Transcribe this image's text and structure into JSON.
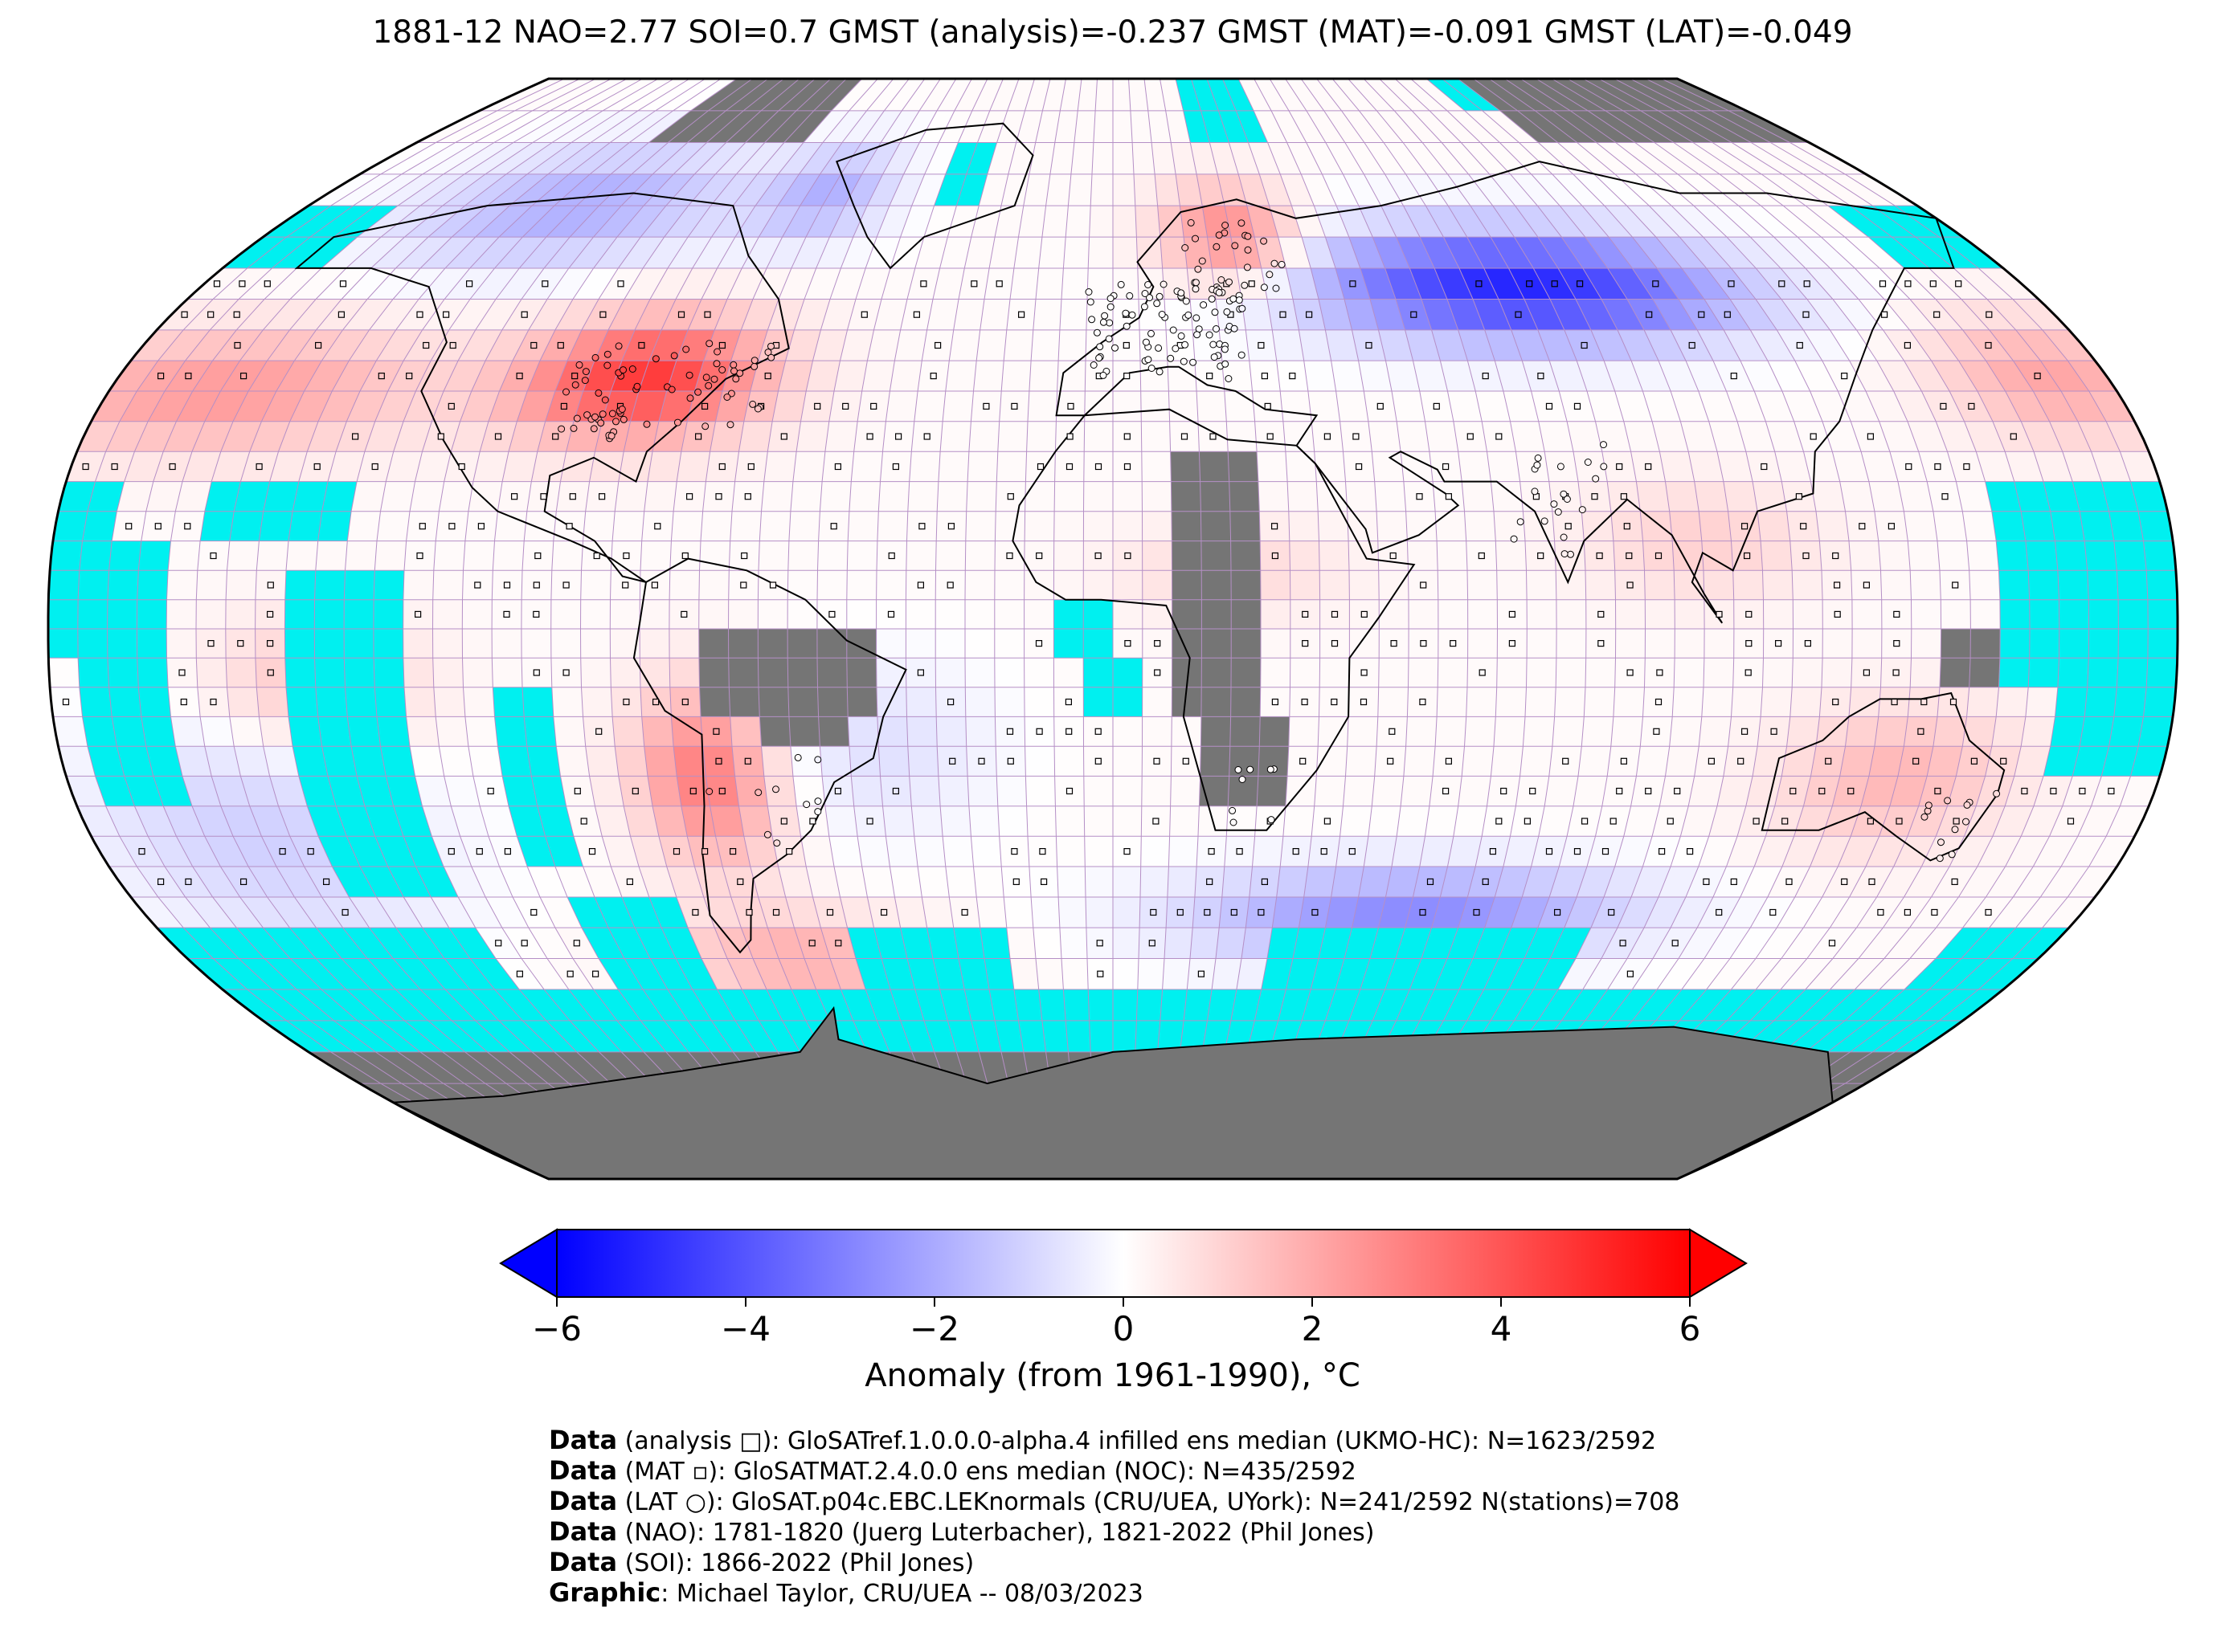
{
  "title": "1881-12 NAO=2.77 SOI=0.7 GMST (analysis)=-0.237 GMST (MAT)=-0.091 GMST (LAT)=-0.049",
  "colors": {
    "no_data": "#00f0f0",
    "land_gap": "#757575",
    "gridline": "#b58fc6",
    "cold": "#0000ff",
    "warm": "#ff0000"
  },
  "colorbar": {
    "label": "Anomaly (from 1961-1990), °C",
    "min": -6,
    "max": 6,
    "ticks": [
      "−6",
      "−4",
      "−2",
      "0",
      "2",
      "4",
      "6"
    ],
    "tick_values": [
      -6,
      -4,
      -2,
      0,
      2,
      4,
      6
    ],
    "extend": "both"
  },
  "credits": [
    {
      "key": "Data",
      "text": " (analysis □): GloSATref.1.0.0.0-alpha.4 infilled ens median (UKMO-HC): N=1623/2592"
    },
    {
      "key": "Data",
      "text": " (MAT ▫): GloSATMAT.2.4.0.0 ens median (NOC): N=435/2592"
    },
    {
      "key": "Data",
      "text": " (LAT ○): GloSAT.p04c.EBC.LEKnormals (CRU/UEA, UYork): N=241/2592 N(stations)=708"
    },
    {
      "key": "Data",
      "text": " (NAO): 1781-1820 (Juerg Luterbacher), 1821-2022 (Phil Jones)"
    },
    {
      "key": "Data",
      "text": " (SOI): 1866-2022 (Phil Jones)"
    },
    {
      "key": "Graphic",
      "text": ": Michael Taylor, CRU/UEA -- 08/03/2023"
    }
  ],
  "chart_data": {
    "type": "heatmap",
    "projection": "Robinson",
    "grid_resolution_deg": 5,
    "units": "°C",
    "anomaly_regions": [
      {
        "region": "North America (east)",
        "anomaly": 4.5
      },
      {
        "region": "North Pacific",
        "anomaly": 2.5
      },
      {
        "region": "Scandinavia",
        "anomaly": 3.0
      },
      {
        "region": "Siberia / Central Asia",
        "anomaly": -5.0
      },
      {
        "region": "Canada / Arctic",
        "anomaly": -2.0
      },
      {
        "region": "South America (west)",
        "anomaly": 3.5
      },
      {
        "region": "Southern Ocean (south of Africa/Indian)",
        "anomaly": -3.0
      },
      {
        "region": "Australia",
        "anomaly": 2.0
      },
      {
        "region": "Tropical Atlantic",
        "anomaly": 0.3
      }
    ]
  }
}
